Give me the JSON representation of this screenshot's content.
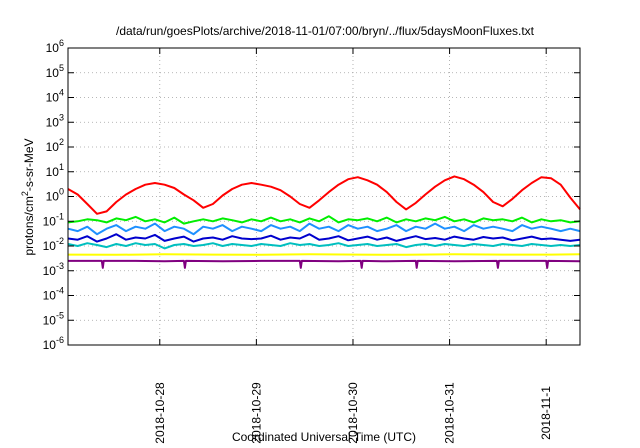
{
  "chart_data": {
    "type": "line",
    "title": "/data/run/goesPlots/archive/2018-11-01/07:00/bryn/../flux/5daysMoonFluxes.txt",
    "xlabel": "Coordinated Universal Time (UTC)",
    "ylabel_parts": {
      "base": "protons/cm",
      "sup": "2",
      "rest": "-s-sr-MeV"
    },
    "yscale": "log",
    "ylim": [
      1e-06,
      1000000.0
    ],
    "xlim": [
      0,
      5.3
    ],
    "grid": true,
    "y_ticks": [
      {
        "value": 1e-06,
        "base": "10",
        "exp": "-6"
      },
      {
        "value": 1e-05,
        "base": "10",
        "exp": "-5"
      },
      {
        "value": 0.0001,
        "base": "10",
        "exp": "-4"
      },
      {
        "value": 0.001,
        "base": "10",
        "exp": "-3"
      },
      {
        "value": 0.01,
        "base": "10",
        "exp": "-2"
      },
      {
        "value": 0.1,
        "base": "10",
        "exp": "-1"
      },
      {
        "value": 1,
        "base": "10",
        "exp": "0"
      },
      {
        "value": 10.0,
        "base": "10",
        "exp": "1"
      },
      {
        "value": 100.0,
        "base": "10",
        "exp": "2"
      },
      {
        "value": 1000.0,
        "base": "10",
        "exp": "3"
      },
      {
        "value": 10000.0,
        "base": "10",
        "exp": "4"
      },
      {
        "value": 100000.0,
        "base": "10",
        "exp": "5"
      },
      {
        "value": 1000000.0,
        "base": "10",
        "exp": "6"
      }
    ],
    "x_ticks": [
      {
        "value": 0.95,
        "label": "2018-10-28"
      },
      {
        "value": 1.95,
        "label": "2018-10-29"
      },
      {
        "value": 2.95,
        "label": "2018-10-30"
      },
      {
        "value": 3.95,
        "label": "2018-10-31"
      },
      {
        "value": 4.95,
        "label": "2018-11-1"
      }
    ],
    "series": [
      {
        "color": "#ff0000",
        "x": [
          0,
          0.1,
          0.2,
          0.3,
          0.4,
          0.5,
          0.6,
          0.7,
          0.8,
          0.9,
          1.0,
          1.1,
          1.2,
          1.3,
          1.4,
          1.5,
          1.6,
          1.7,
          1.8,
          1.9,
          2.0,
          2.1,
          2.2,
          2.3,
          2.4,
          2.5,
          2.6,
          2.7,
          2.8,
          2.9,
          3.0,
          3.1,
          3.2,
          3.3,
          3.4,
          3.5,
          3.6,
          3.7,
          3.8,
          3.9,
          4.0,
          4.1,
          4.2,
          4.3,
          4.4,
          4.5,
          4.6,
          4.7,
          4.8,
          4.9,
          5.0,
          5.1,
          5.2,
          5.3
        ],
        "values": [
          2,
          1.2,
          0.5,
          0.2,
          0.25,
          0.6,
          1.2,
          2,
          3,
          3.5,
          3,
          2.2,
          1.2,
          0.7,
          0.35,
          0.5,
          1.1,
          2,
          3,
          3.5,
          3,
          2.5,
          1.8,
          1,
          0.5,
          0.35,
          0.7,
          1.5,
          3,
          5,
          6,
          4.5,
          3,
          1.5,
          0.6,
          0.3,
          0.55,
          1.2,
          2.5,
          4.5,
          6.5,
          5,
          3,
          1.5,
          0.6,
          0.4,
          0.8,
          1.8,
          3.5,
          6,
          5.5,
          3,
          0.9,
          0.3
        ]
      },
      {
        "color": "#00ee00",
        "x": [
          0,
          0.1,
          0.2,
          0.3,
          0.4,
          0.5,
          0.6,
          0.7,
          0.8,
          0.9,
          1.0,
          1.1,
          1.2,
          1.3,
          1.4,
          1.5,
          1.6,
          1.7,
          1.8,
          1.9,
          2.0,
          2.1,
          2.2,
          2.3,
          2.4,
          2.5,
          2.6,
          2.7,
          2.8,
          2.9,
          3.0,
          3.1,
          3.2,
          3.3,
          3.4,
          3.5,
          3.6,
          3.7,
          3.8,
          3.9,
          4.0,
          4.1,
          4.2,
          4.3,
          4.4,
          4.5,
          4.6,
          4.7,
          4.8,
          4.9,
          5.0,
          5.1,
          5.2,
          5.3
        ],
        "values": [
          0.09,
          0.1,
          0.12,
          0.11,
          0.09,
          0.13,
          0.11,
          0.15,
          0.1,
          0.12,
          0.09,
          0.14,
          0.08,
          0.1,
          0.12,
          0.1,
          0.13,
          0.11,
          0.09,
          0.12,
          0.1,
          0.14,
          0.1,
          0.12,
          0.09,
          0.13,
          0.1,
          0.16,
          0.09,
          0.12,
          0.11,
          0.13,
          0.1,
          0.14,
          0.09,
          0.12,
          0.1,
          0.13,
          0.11,
          0.15,
          0.1,
          0.12,
          0.09,
          0.13,
          0.11,
          0.12,
          0.1,
          0.14,
          0.09,
          0.12,
          0.1,
          0.11,
          0.09,
          0.1
        ]
      },
      {
        "color": "#1e90ff",
        "x": [
          0,
          0.1,
          0.2,
          0.3,
          0.4,
          0.5,
          0.6,
          0.7,
          0.8,
          0.9,
          1.0,
          1.1,
          1.2,
          1.3,
          1.4,
          1.5,
          1.6,
          1.7,
          1.8,
          1.9,
          2.0,
          2.1,
          2.2,
          2.3,
          2.4,
          2.5,
          2.6,
          2.7,
          2.8,
          2.9,
          3.0,
          3.1,
          3.2,
          3.3,
          3.4,
          3.5,
          3.6,
          3.7,
          3.8,
          3.9,
          4.0,
          4.1,
          4.2,
          4.3,
          4.4,
          4.5,
          4.6,
          4.7,
          4.8,
          4.9,
          5.0,
          5.1,
          5.2,
          5.3
        ],
        "values": [
          0.05,
          0.04,
          0.06,
          0.03,
          0.05,
          0.07,
          0.04,
          0.06,
          0.05,
          0.08,
          0.04,
          0.06,
          0.05,
          0.03,
          0.06,
          0.05,
          0.07,
          0.04,
          0.06,
          0.05,
          0.04,
          0.07,
          0.05,
          0.06,
          0.04,
          0.08,
          0.05,
          0.06,
          0.04,
          0.07,
          0.05,
          0.06,
          0.04,
          0.05,
          0.07,
          0.04,
          0.06,
          0.05,
          0.08,
          0.05,
          0.06,
          0.04,
          0.07,
          0.05,
          0.06,
          0.05,
          0.04,
          0.07,
          0.05,
          0.06,
          0.05,
          0.04,
          0.05,
          0.04
        ]
      },
      {
        "color": "#0000cd",
        "x": [
          0,
          0.1,
          0.2,
          0.3,
          0.4,
          0.5,
          0.6,
          0.7,
          0.8,
          0.9,
          1.0,
          1.1,
          1.2,
          1.3,
          1.4,
          1.5,
          1.6,
          1.7,
          1.8,
          1.9,
          2.0,
          2.1,
          2.2,
          2.3,
          2.4,
          2.5,
          2.6,
          2.7,
          2.8,
          2.9,
          3.0,
          3.1,
          3.2,
          3.3,
          3.4,
          3.5,
          3.6,
          3.7,
          3.8,
          3.9,
          4.0,
          4.1,
          4.2,
          4.3,
          4.4,
          4.5,
          4.6,
          4.7,
          4.8,
          4.9,
          5.0,
          5.1,
          5.2,
          5.3
        ],
        "values": [
          0.02,
          0.018,
          0.025,
          0.015,
          0.02,
          0.03,
          0.018,
          0.022,
          0.02,
          0.028,
          0.016,
          0.02,
          0.024,
          0.015,
          0.02,
          0.022,
          0.018,
          0.025,
          0.02,
          0.019,
          0.02,
          0.026,
          0.018,
          0.022,
          0.02,
          0.03,
          0.018,
          0.02,
          0.025,
          0.017,
          0.02,
          0.024,
          0.018,
          0.022,
          0.016,
          0.02,
          0.025,
          0.019,
          0.021,
          0.018,
          0.024,
          0.02,
          0.018,
          0.023,
          0.02,
          0.022,
          0.017,
          0.02,
          0.024,
          0.019,
          0.02,
          0.018,
          0.016,
          0.018
        ]
      },
      {
        "color": "#00bfbf",
        "x": [
          0,
          0.1,
          0.2,
          0.3,
          0.4,
          0.5,
          0.6,
          0.7,
          0.8,
          0.9,
          1.0,
          1.1,
          1.2,
          1.3,
          1.4,
          1.5,
          1.6,
          1.7,
          1.8,
          1.9,
          2.0,
          2.1,
          2.2,
          2.3,
          2.4,
          2.5,
          2.6,
          2.7,
          2.8,
          2.9,
          3.0,
          3.1,
          3.2,
          3.3,
          3.4,
          3.5,
          3.6,
          3.7,
          3.8,
          3.9,
          4.0,
          4.1,
          4.2,
          4.3,
          4.4,
          4.5,
          4.6,
          4.7,
          4.8,
          4.9,
          5.0,
          5.1,
          5.2,
          5.3
        ],
        "values": [
          0.012,
          0.01,
          0.013,
          0.011,
          0.009,
          0.012,
          0.01,
          0.013,
          0.011,
          0.012,
          0.008,
          0.011,
          0.012,
          0.01,
          0.011,
          0.013,
          0.01,
          0.012,
          0.011,
          0.01,
          0.012,
          0.011,
          0.01,
          0.013,
          0.011,
          0.012,
          0.01,
          0.011,
          0.013,
          0.01,
          0.011,
          0.012,
          0.01,
          0.011,
          0.012,
          0.009,
          0.011,
          0.012,
          0.01,
          0.012,
          0.011,
          0.01,
          0.012,
          0.011,
          0.01,
          0.012,
          0.011,
          0.01,
          0.012,
          0.011,
          0.01,
          0.011,
          0.01,
          0.011
        ]
      },
      {
        "color": "#ffff00",
        "x": [
          0,
          0.5,
          1.0,
          1.5,
          2.0,
          2.5,
          3.0,
          3.5,
          4.0,
          4.5,
          5.0,
          5.3
        ],
        "values": [
          0.0045,
          0.0044,
          0.0046,
          0.0045,
          0.0044,
          0.0046,
          0.0045,
          0.0044,
          0.0046,
          0.0045,
          0.0045,
          0.0046
        ]
      },
      {
        "color": "#800080",
        "x": [
          0,
          0.35,
          0.36,
          0.37,
          0.7,
          1.0,
          1.2,
          1.21,
          1.22,
          1.6,
          2.0,
          2.4,
          2.41,
          2.42,
          2.8,
          3.03,
          3.04,
          3.05,
          3.3,
          3.6,
          3.61,
          3.62,
          4.0,
          4.44,
          4.45,
          4.46,
          4.8,
          4.95,
          4.96,
          4.97,
          5.3
        ],
        "values": [
          0.0025,
          0.0025,
          0.0013,
          0.0025,
          0.0025,
          0.0024,
          0.0025,
          0.0013,
          0.0025,
          0.0024,
          0.0025,
          0.0025,
          0.0013,
          0.0025,
          0.0024,
          0.0025,
          0.0013,
          0.0025,
          0.0024,
          0.0025,
          0.0013,
          0.0025,
          0.0024,
          0.0025,
          0.0013,
          0.0025,
          0.0025,
          0.0025,
          0.0013,
          0.0025,
          0.0024
        ]
      }
    ]
  }
}
